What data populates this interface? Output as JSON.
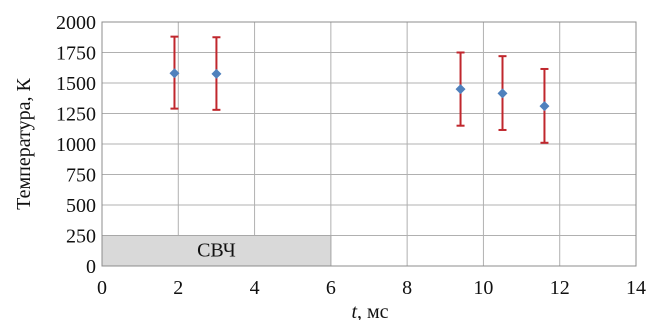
{
  "chart_data": {
    "type": "scatter",
    "title": "",
    "xlabel_italic": "t",
    "xlabel_rest": ", мс",
    "ylabel": "Температура, К",
    "xlim": [
      0,
      14
    ],
    "ylim": [
      0,
      2000
    ],
    "x_ticks": [
      0,
      2,
      4,
      6,
      8,
      10,
      12,
      14
    ],
    "y_ticks": [
      0,
      250,
      500,
      750,
      1000,
      1250,
      1500,
      1750,
      2000
    ],
    "x_tick_labels": [
      "0",
      "2",
      "4",
      "6",
      "8",
      "10",
      "12",
      "14"
    ],
    "y_tick_labels": [
      "0",
      "250",
      "500",
      "750",
      "1000",
      "1250",
      "1500",
      "1750",
      "2000"
    ],
    "grid": true,
    "shaded_region": {
      "label": "СВЧ",
      "x_from": 0,
      "x_to": 6,
      "y_from": 0,
      "y_to": 250,
      "color": "#d9d9d9"
    },
    "series": [
      {
        "marker_color": "#4f81bd",
        "error_color": "#c0272d",
        "points": [
          {
            "x": 1.9,
            "y": 1580,
            "err_low": 1290,
            "err_high": 1880
          },
          {
            "x": 3.0,
            "y": 1575,
            "err_low": 1280,
            "err_high": 1875
          },
          {
            "x": 9.4,
            "y": 1450,
            "err_low": 1150,
            "err_high": 1750
          },
          {
            "x": 10.5,
            "y": 1415,
            "err_low": 1115,
            "err_high": 1720
          },
          {
            "x": 11.6,
            "y": 1310,
            "err_low": 1010,
            "err_high": 1615
          }
        ]
      }
    ]
  }
}
